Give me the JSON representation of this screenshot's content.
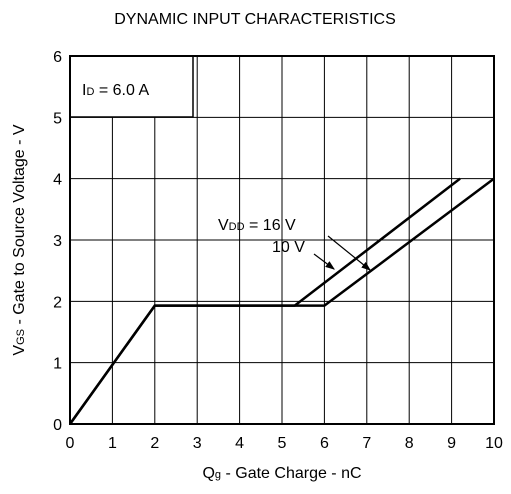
{
  "chart_data": {
    "type": "line",
    "title": "DYNAMIC INPUT CHARACTERISTICS",
    "x_label": {
      "main": "Q",
      "sub": "g",
      "rest": " - Gate Charge - nC"
    },
    "y_label": {
      "main": "V",
      "sub": "GS",
      "rest": " - Gate to Source Voltage - V"
    },
    "condition": {
      "main": "I",
      "sub": "D",
      "rest": " = 6.0 A"
    },
    "series_label_prefix": {
      "main": "V",
      "sub": "DD",
      "rest": " = "
    },
    "series": [
      {
        "name": "16 V",
        "color": "#000000",
        "x": [
          0,
          2,
          5.3,
          9.2
        ],
        "values": [
          0,
          1.93,
          1.93,
          4
        ]
      },
      {
        "name": "10 V",
        "color": "#000000",
        "x": [
          0,
          2,
          6,
          10
        ],
        "values": [
          0,
          1.93,
          1.93,
          4
        ]
      }
    ],
    "xlim": [
      0,
      10
    ],
    "xticks": [
      0,
      1,
      2,
      3,
      4,
      5,
      6,
      7,
      8,
      9,
      10
    ],
    "ylim": [
      0,
      6
    ],
    "yticks": [
      0,
      1,
      2,
      3,
      4,
      5,
      6
    ],
    "grid": true
  }
}
